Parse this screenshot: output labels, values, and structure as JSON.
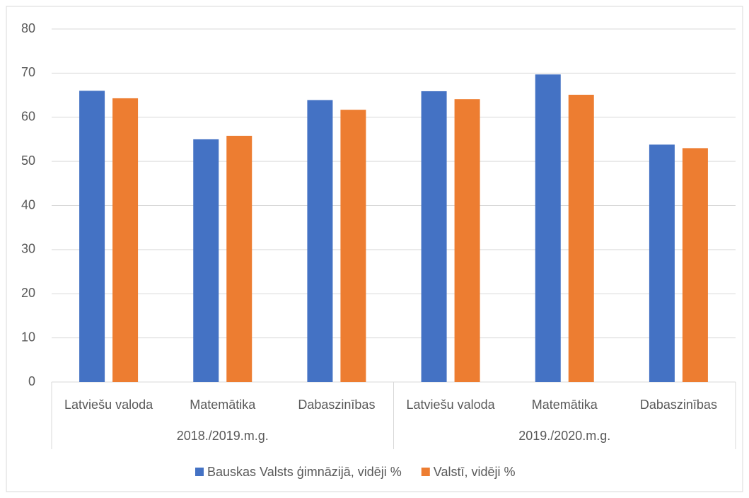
{
  "chart_data": {
    "type": "bar",
    "categories": [
      "Latviešu valoda",
      "Matemātika",
      "Dabaszinības",
      "Latviešu valoda",
      "Matemātika",
      "Dabaszinības"
    ],
    "category_groups": [
      "2018./2019.m.g.",
      "2019./2020.m.g."
    ],
    "series": [
      {
        "name": "Bauskas Valsts ģimnāzijā, vidēji %",
        "color": "#4472c4",
        "values": [
          66.0,
          55.0,
          63.9,
          65.9,
          69.7,
          53.8
        ]
      },
      {
        "name": "Valstī, vidēji %",
        "color": "#ed7d31",
        "values": [
          64.3,
          55.8,
          61.7,
          64.1,
          65.1,
          53.0
        ]
      }
    ],
    "ylim": [
      0,
      80
    ],
    "yticks": [
      0,
      10,
      20,
      30,
      40,
      50,
      60,
      70,
      80
    ],
    "grid": true,
    "legend": "bottom"
  }
}
